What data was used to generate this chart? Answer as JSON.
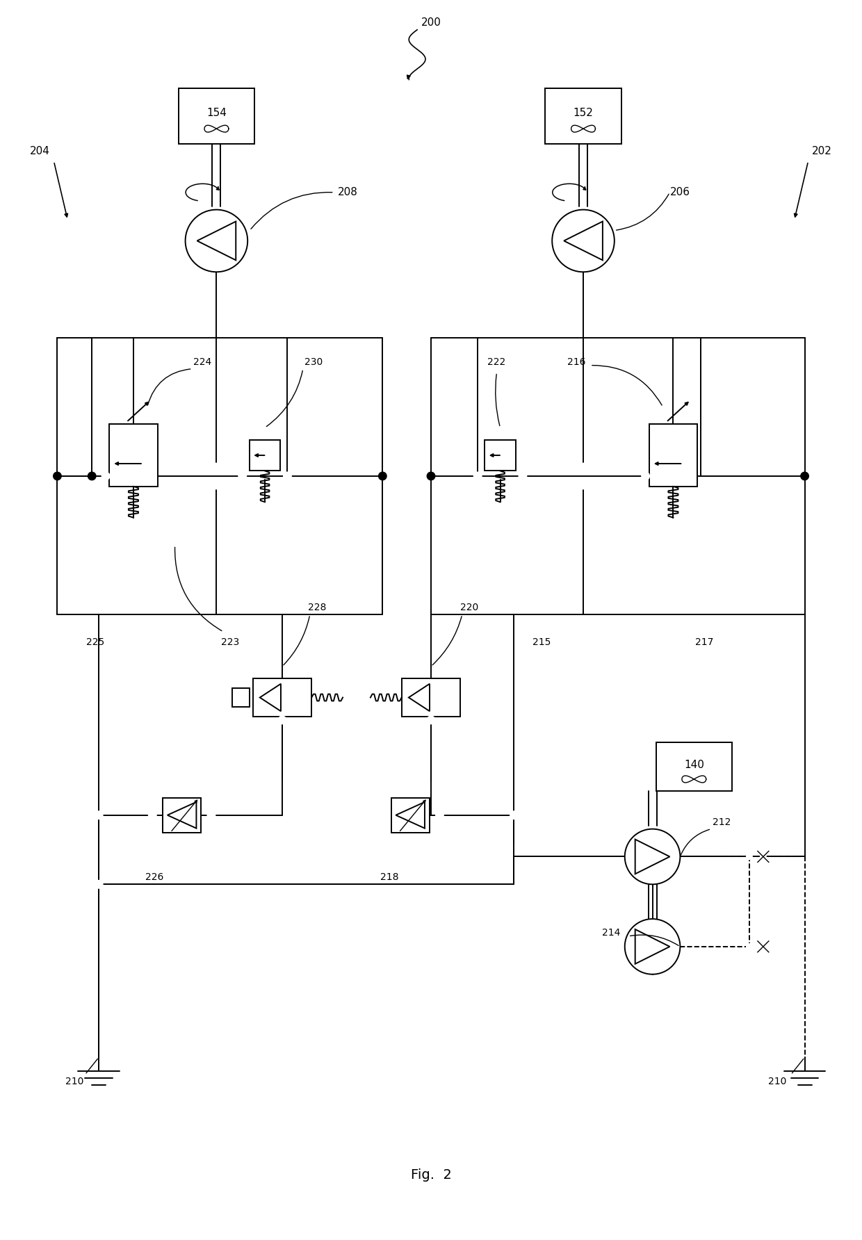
{
  "bg_color": "#ffffff",
  "lc": "#000000",
  "fig_w": 12.4,
  "fig_h": 17.84,
  "dpi": 100
}
